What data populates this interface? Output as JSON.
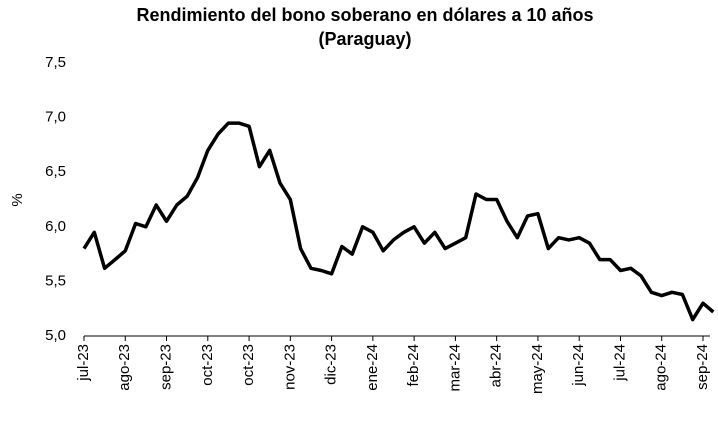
{
  "chart_data": {
    "type": "line",
    "title": [
      "Rendimiento del bono soberano en dólares a 10 años",
      "(Paraguay)"
    ],
    "y_label": "%",
    "categories": [
      "jul-23",
      null,
      null,
      null,
      "ago-23",
      null,
      null,
      null,
      "sep-23",
      null,
      null,
      null,
      "oct-23",
      null,
      null,
      null,
      "oct-23",
      null,
      null,
      null,
      "nov-23",
      null,
      null,
      null,
      "dic-23",
      null,
      null,
      null,
      "ene-24",
      null,
      null,
      null,
      "feb-24",
      null,
      null,
      null,
      "mar-24",
      null,
      null,
      null,
      "abr-24",
      null,
      null,
      null,
      "may-24",
      null,
      null,
      null,
      "jun-24",
      null,
      null,
      null,
      "jul-24",
      null,
      null,
      null,
      "ago-24",
      null,
      null,
      null,
      "sep-24",
      null
    ],
    "values": [
      5.8,
      5.95,
      5.62,
      5.7,
      5.78,
      6.03,
      6.0,
      6.2,
      6.05,
      6.2,
      6.28,
      6.45,
      6.7,
      6.85,
      6.95,
      6.95,
      6.92,
      6.55,
      6.7,
      6.4,
      6.25,
      5.8,
      5.62,
      5.6,
      5.57,
      5.82,
      5.75,
      6.0,
      5.95,
      5.78,
      5.88,
      5.95,
      6.0,
      5.85,
      5.95,
      5.8,
      5.85,
      5.9,
      6.3,
      6.25,
      6.25,
      6.05,
      5.9,
      6.1,
      6.12,
      5.8,
      5.9,
      5.88,
      5.9,
      5.85,
      5.7,
      5.7,
      5.6,
      5.62,
      5.55,
      5.4,
      5.37,
      5.4,
      5.38,
      5.15,
      5.3,
      5.22
    ],
    "color": "#000000",
    "ylim": [
      5.0,
      7.5
    ],
    "yticks": [
      {
        "value": 5.0,
        "label": "5,0"
      },
      {
        "value": 5.5,
        "label": "5,5"
      },
      {
        "value": 6.0,
        "label": "6,0"
      },
      {
        "value": 6.5,
        "label": "6,5"
      },
      {
        "value": 7.0,
        "label": "7,0"
      },
      {
        "value": 7.5,
        "label": "7,5"
      }
    ],
    "grid": false
  }
}
